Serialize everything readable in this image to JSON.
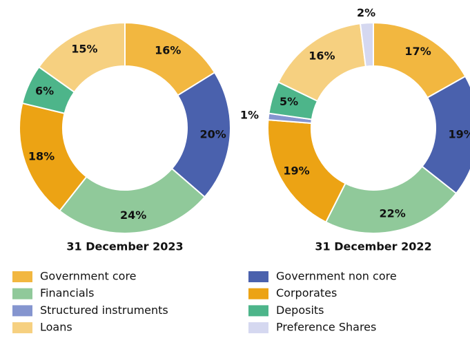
{
  "chart_data": [
    {
      "type": "pie",
      "donut": true,
      "title": "31 December 2023",
      "categories": [
        "Government core",
        "Government non core",
        "Financials",
        "Corporates",
        "Deposits",
        "Loans"
      ],
      "values": [
        16,
        20,
        24,
        18,
        6,
        15
      ],
      "value_labels": [
        "16%",
        "20%",
        "24%",
        "18%",
        "6%",
        "15%"
      ]
    },
    {
      "type": "pie",
      "donut": true,
      "title": "31 December 2022",
      "categories": [
        "Government core",
        "Government non core",
        "Financials",
        "Corporates",
        "Structured instruments",
        "Deposits",
        "Loans",
        "Preference Shares"
      ],
      "values": [
        17,
        19,
        22,
        19,
        1,
        5,
        16,
        2
      ],
      "value_labels": [
        "17%",
        "19%",
        "22%",
        "19%",
        "1%",
        "5%",
        "16%",
        "2%"
      ]
    }
  ],
  "legend": [
    {
      "name": "Government core",
      "color": "#f2b740"
    },
    {
      "name": "Government non core",
      "color": "#4a61ad"
    },
    {
      "name": "Financials",
      "color": "#90c99a"
    },
    {
      "name": "Corporates",
      "color": "#eca314"
    },
    {
      "name": "Structured instruments",
      "color": "#8595cf"
    },
    {
      "name": "Deposits",
      "color": "#4db58a"
    },
    {
      "name": "Loans",
      "color": "#f6d080"
    },
    {
      "name": "Preference Shares",
      "color": "#d5d8f0"
    }
  ]
}
